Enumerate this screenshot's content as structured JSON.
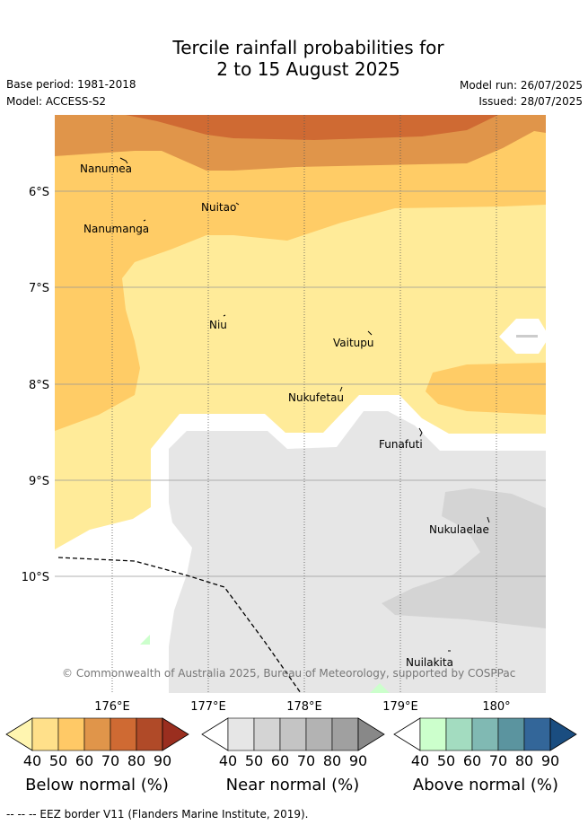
{
  "header": {
    "title_line1": "Tercile rainfall probabilities for",
    "title_line2": "2 to 15 August 2025",
    "base_period": "Base period: 1981-2018",
    "model": "Model: ACCESS-S2",
    "model_run": "Model run: 26/07/2025",
    "issued": "Issued: 28/07/2025"
  },
  "map": {
    "lat_ticks": [
      "6°S",
      "7°S",
      "8°S",
      "9°S",
      "10°S"
    ],
    "lon_ticks": [
      "176°E",
      "177°E",
      "178°E",
      "179°E",
      "180°"
    ],
    "places": {
      "nanumea": "Nanumea",
      "nuitao": "Nuitao",
      "nanumanga": "Nanumanga",
      "niu": "Niu",
      "vaitupu": "Vaitupu",
      "nukufetau": "Nukufetau",
      "funafuti": "Funafuti",
      "nukulaelae": "Nukulaelae",
      "nuilakita": "Nuilakita"
    },
    "copyright": "© Commonwealth of Australia 2025, Bureau of Meteorology, supported by COSPPac"
  },
  "legends": {
    "below": {
      "title": "Below normal (%)",
      "ticks": [
        "40",
        "50",
        "60",
        "70",
        "80",
        "90"
      ],
      "colors": [
        "#fff5b0",
        "#ffe08a",
        "#ffc966",
        "#e0954a",
        "#cf6a33",
        "#b04a28",
        "#9a2e1f"
      ]
    },
    "near": {
      "title": "Near normal (%)",
      "ticks": [
        "40",
        "50",
        "60",
        "70",
        "80",
        "90"
      ],
      "colors": [
        "#ffffff",
        "#e6e6e6",
        "#d4d4d4",
        "#c4c4c4",
        "#b3b3b3",
        "#a0a0a0",
        "#888888"
      ]
    },
    "above": {
      "title": "Above normal (%)",
      "ticks": [
        "40",
        "50",
        "60",
        "70",
        "80",
        "90"
      ],
      "colors": [
        "#ffffff",
        "#ccffcc",
        "#a3dcc0",
        "#80b9b3",
        "#5b949f",
        "#336699",
        "#1a4d80"
      ]
    }
  },
  "footer": {
    "eez_note": "--  --  -- EEZ border V11 (Flanders Marine Institute, 2019)."
  }
}
